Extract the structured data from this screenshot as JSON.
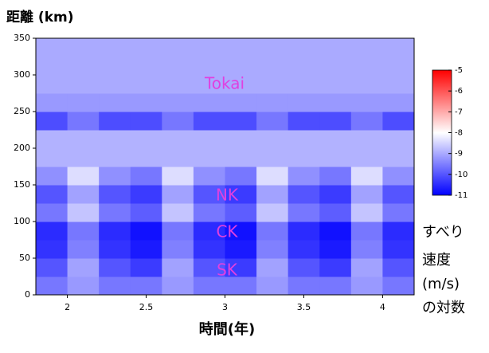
{
  "chart_data": {
    "type": "heatmap",
    "title": "距離 (km)",
    "x_label": "時間(年)",
    "x_bins": [
      1.8,
      2.0,
      2.2,
      2.4,
      2.6,
      2.8,
      3.0,
      3.2,
      3.4,
      3.6,
      3.8,
      4.0,
      4.2
    ],
    "y_bins": [
      0,
      25,
      50,
      75,
      100,
      125,
      150,
      175,
      200,
      225,
      250,
      275,
      300,
      325,
      350
    ],
    "z": [
      [
        -9.6,
        -9.2,
        -9.6,
        -9.6,
        -9.2,
        -9.6,
        -9.6,
        -9.2,
        -9.6,
        -9.6,
        -9.2,
        -9.6
      ],
      [
        -10.0,
        -9.1,
        -10.0,
        -10.3,
        -9.1,
        -10.0,
        -10.3,
        -9.1,
        -10.0,
        -10.3,
        -9.1,
        -10.0
      ],
      [
        -10.4,
        -9.5,
        -10.4,
        -10.7,
        -9.5,
        -10.4,
        -10.7,
        -9.5,
        -10.4,
        -10.7,
        -9.5,
        -10.4
      ],
      [
        -10.5,
        -9.6,
        -10.5,
        -10.8,
        -9.6,
        -10.5,
        -10.8,
        -9.6,
        -10.5,
        -10.8,
        -9.6,
        -10.5
      ],
      [
        -9.6,
        -8.7,
        -9.6,
        -9.9,
        -8.7,
        -9.6,
        -9.9,
        -8.7,
        -9.6,
        -9.9,
        -8.7,
        -9.6
      ],
      [
        -10.0,
        -9.1,
        -10.0,
        -10.3,
        -9.1,
        -10.0,
        -10.3,
        -9.1,
        -10.0,
        -10.3,
        -9.1,
        -10.0
      ],
      [
        -9.3,
        -8.4,
        -9.3,
        -9.6,
        -8.4,
        -9.3,
        -9.6,
        -8.4,
        -9.3,
        -9.6,
        -8.4,
        -9.3
      ],
      [
        -8.9,
        -8.9,
        -8.9,
        -8.9,
        -8.9,
        -8.9,
        -8.9,
        -8.9,
        -8.9,
        -8.9,
        -8.9,
        -8.9
      ],
      [
        -8.9,
        -8.9,
        -8.9,
        -8.9,
        -8.9,
        -8.9,
        -8.9,
        -8.9,
        -8.9,
        -8.9,
        -8.9,
        -8.9
      ],
      [
        -10.1,
        -9.6,
        -10.1,
        -10.1,
        -9.6,
        -10.1,
        -10.1,
        -9.6,
        -10.1,
        -10.1,
        -9.6,
        -10.1
      ],
      [
        -9.2,
        -9.2,
        -9.2,
        -9.2,
        -9.2,
        -9.2,
        -9.2,
        -9.2,
        -9.2,
        -9.2,
        -9.2,
        -9.2
      ],
      [
        -9.0,
        -9.0,
        -9.0,
        -9.0,
        -9.0,
        -9.0,
        -9.0,
        -9.0,
        -9.0,
        -9.0,
        -9.0,
        -9.0
      ],
      [
        -9.0,
        -9.0,
        -9.0,
        -9.0,
        -9.0,
        -9.0,
        -9.0,
        -9.0,
        -9.0,
        -9.0,
        -9.0,
        -9.0
      ],
      [
        -9.0,
        -9.0,
        -9.0,
        -9.0,
        -9.0,
        -9.0,
        -9.0,
        -9.0,
        -9.0,
        -9.0,
        -9.0,
        -9.0
      ]
    ],
    "xlim": [
      1.8,
      4.2
    ],
    "ylim": [
      0,
      350
    ],
    "xticks": [
      2,
      2.5,
      3,
      3.5,
      4
    ],
    "yticks": [
      0,
      50,
      100,
      150,
      200,
      250,
      300,
      350
    ],
    "colorbar": {
      "lim": [
        -11,
        -5
      ],
      "ticks": [
        -5,
        -6,
        -7,
        -8,
        -9,
        -10,
        -11
      ],
      "label_lines": [
        "すべり",
        "速度",
        "(m/s)",
        "の対数"
      ]
    },
    "annotations": [
      "Tokai",
      "NK",
      "CK",
      "SK"
    ],
    "annotation_color": "#e040e0"
  }
}
